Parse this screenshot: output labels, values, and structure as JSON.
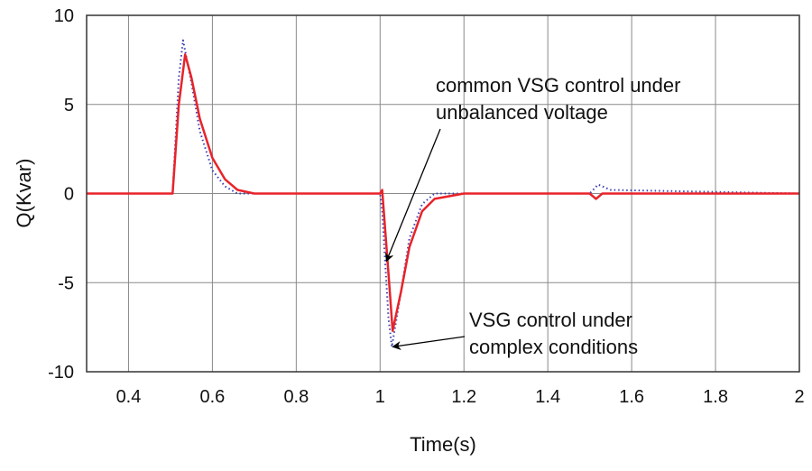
{
  "chart_data": {
    "type": "line",
    "title": "",
    "xlabel": "Time(s)",
    "ylabel": "Q(Kvar)",
    "xlim": [
      0.3,
      2.0
    ],
    "ylim": [
      -10,
      10
    ],
    "xticks": [
      0.4,
      0.6,
      0.8,
      1,
      1.2,
      1.4,
      1.6,
      1.8,
      2
    ],
    "xtick_labels": [
      "0.4",
      "0.6",
      "0.8",
      "1",
      "1.2",
      "1.4",
      "1.6",
      "1.8",
      "2"
    ],
    "yticks": [
      10,
      5,
      0,
      -5,
      -10
    ],
    "ytick_labels": [
      "10",
      "5",
      "0",
      "-5",
      "-10"
    ],
    "grid": true,
    "series": [
      {
        "style": "solid",
        "color": "#e8232a",
        "x": [
          0.3,
          0.5,
          0.505,
          0.52,
          0.535,
          0.55,
          0.57,
          0.6,
          0.63,
          0.66,
          0.7,
          1.0,
          1.005,
          1.02,
          1.03,
          1.05,
          1.07,
          1.1,
          1.13,
          1.2,
          1.5,
          1.515,
          1.53,
          2.0
        ],
        "y": [
          0,
          0,
          0,
          5,
          7.8,
          6.5,
          4.2,
          2.0,
          0.8,
          0.2,
          0,
          0,
          0.2,
          -4.5,
          -7.7,
          -5.5,
          -3,
          -1,
          -0.3,
          0,
          0,
          -0.3,
          0,
          0
        ]
      },
      {
        "style": "dotted",
        "color": "#3a3fb0",
        "x": [
          0.3,
          0.5,
          0.505,
          0.52,
          0.53,
          0.55,
          0.57,
          0.6,
          0.63,
          0.66,
          0.7,
          1.0,
          1.005,
          1.02,
          1.028,
          1.05,
          1.07,
          1.1,
          1.13,
          1.2,
          1.5,
          1.52,
          1.55,
          2.0
        ],
        "y": [
          0,
          0,
          0,
          6.5,
          8.6,
          6.2,
          3.5,
          1.3,
          0.4,
          0,
          0,
          0,
          -1,
          -7,
          -8.6,
          -5.5,
          -2.5,
          -0.6,
          0,
          0,
          0,
          0.5,
          0.2,
          0
        ]
      }
    ],
    "annotations": [
      {
        "lines": [
          "common VSG control under",
          "unbalanced voltage"
        ],
        "arrow_to": [
          1.015,
          -3.8
        ]
      },
      {
        "lines": [
          "VSG control under",
          "complex conditions"
        ],
        "arrow_to": [
          1.03,
          -8.6
        ]
      }
    ]
  }
}
